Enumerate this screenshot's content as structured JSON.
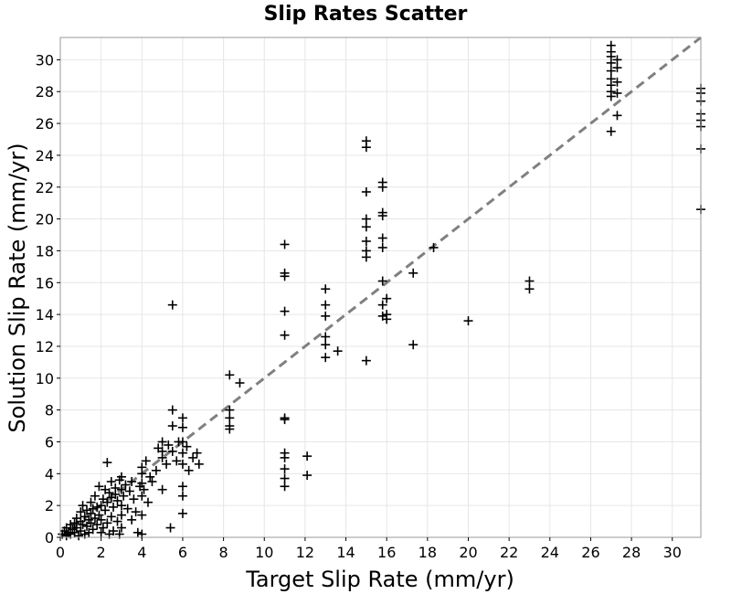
{
  "chart_data": {
    "type": "scatter",
    "title": "Slip Rates Scatter",
    "xlabel": "Target Slip Rate (mm/yr)",
    "ylabel": "Solution Slip Rate (mm/yr)",
    "xlim": [
      0,
      31.4
    ],
    "ylim": [
      0,
      31.4
    ],
    "xticks": [
      0,
      2,
      4,
      6,
      8,
      10,
      12,
      14,
      16,
      18,
      20,
      22,
      24,
      26,
      28,
      30
    ],
    "yticks": [
      0,
      2,
      4,
      6,
      8,
      10,
      12,
      14,
      16,
      18,
      20,
      22,
      24,
      26,
      28,
      30
    ],
    "grid": true,
    "marker": "plus",
    "marker_color": "#000000",
    "reference_line": {
      "style": "dashed",
      "color": "#808080",
      "from": [
        0,
        0
      ],
      "to": [
        31.4,
        31.4
      ]
    },
    "points": [
      [
        0.1,
        0.2
      ],
      [
        0.2,
        0.4
      ],
      [
        0.3,
        0.1
      ],
      [
        0.3,
        0.6
      ],
      [
        0.4,
        0.3
      ],
      [
        0.5,
        0.8
      ],
      [
        0.5,
        0.2
      ],
      [
        0.6,
        0.5
      ],
      [
        0.7,
        0.9
      ],
      [
        0.7,
        0.3
      ],
      [
        0.8,
        1.2
      ],
      [
        0.8,
        0.6
      ],
      [
        0.9,
        0.1
      ],
      [
        1.0,
        1.0
      ],
      [
        1.0,
        0.4
      ],
      [
        1.0,
        1.6
      ],
      [
        1.1,
        0.8
      ],
      [
        1.1,
        2.0
      ],
      [
        1.2,
        1.3
      ],
      [
        1.2,
        0.2
      ],
      [
        1.3,
        1.7
      ],
      [
        1.3,
        0.7
      ],
      [
        1.4,
        1.1
      ],
      [
        1.4,
        0.3
      ],
      [
        1.5,
        1.5
      ],
      [
        1.5,
        0.9
      ],
      [
        1.5,
        2.2
      ],
      [
        1.6,
        1.8
      ],
      [
        1.6,
        0.5
      ],
      [
        1.7,
        1.2
      ],
      [
        1.7,
        2.6
      ],
      [
        1.8,
        1.9
      ],
      [
        1.8,
        0.8
      ],
      [
        1.9,
        1.4
      ],
      [
        1.9,
        3.2
      ],
      [
        2.0,
        2.0
      ],
      [
        2.0,
        0.3
      ],
      [
        2.0,
        1.1
      ],
      [
        2.1,
        2.4
      ],
      [
        2.1,
        0.6
      ],
      [
        2.2,
        1.7
      ],
      [
        2.2,
        3.0
      ],
      [
        2.3,
        2.2
      ],
      [
        2.3,
        0.9
      ],
      [
        2.3,
        4.7
      ],
      [
        2.4,
        2.8
      ],
      [
        2.4,
        0.2
      ],
      [
        2.5,
        2.5
      ],
      [
        2.5,
        1.3
      ],
      [
        2.5,
        3.5
      ],
      [
        2.6,
        1.9
      ],
      [
        2.6,
        0.4
      ],
      [
        2.7,
        2.7
      ],
      [
        2.7,
        3.1
      ],
      [
        2.8,
        1.0
      ],
      [
        2.8,
        2.3
      ],
      [
        2.9,
        3.6
      ],
      [
        2.9,
        0.2
      ],
      [
        3.0,
        3.0
      ],
      [
        3.0,
        2.0
      ],
      [
        3.0,
        3.8
      ],
      [
        3.0,
        1.4
      ],
      [
        3.0,
        0.6
      ],
      [
        3.1,
        2.6
      ],
      [
        3.2,
        3.3
      ],
      [
        3.3,
        1.8
      ],
      [
        3.4,
        2.9
      ],
      [
        3.5,
        3.5
      ],
      [
        3.5,
        1.1
      ],
      [
        3.6,
        2.4
      ],
      [
        3.7,
        1.6
      ],
      [
        3.8,
        0.3
      ],
      [
        3.9,
        3.2
      ],
      [
        4.0,
        4.0
      ],
      [
        4.0,
        3.4
      ],
      [
        4.0,
        1.4
      ],
      [
        4.0,
        2.6
      ],
      [
        4.0,
        4.4
      ],
      [
        4.0,
        0.2
      ],
      [
        4.1,
        3.0
      ],
      [
        4.2,
        4.8
      ],
      [
        4.3,
        2.2
      ],
      [
        4.4,
        3.8
      ],
      [
        4.5,
        3.5
      ],
      [
        4.7,
        4.2
      ],
      [
        4.8,
        5.6
      ],
      [
        5.0,
        5.0
      ],
      [
        5.0,
        6.0
      ],
      [
        5.0,
        3.0
      ],
      [
        5.0,
        5.4
      ],
      [
        5.2,
        4.6
      ],
      [
        5.3,
        5.8
      ],
      [
        5.4,
        0.6
      ],
      [
        5.5,
        8.0
      ],
      [
        5.5,
        7.0
      ],
      [
        5.5,
        14.6
      ],
      [
        5.5,
        5.4
      ],
      [
        5.7,
        4.8
      ],
      [
        5.8,
        6.0
      ],
      [
        6.0,
        6.0
      ],
      [
        6.0,
        7.5
      ],
      [
        6.0,
        6.9
      ],
      [
        6.0,
        5.3
      ],
      [
        6.0,
        4.6
      ],
      [
        6.0,
        3.2
      ],
      [
        6.0,
        2.6
      ],
      [
        6.0,
        1.5
      ],
      [
        6.2,
        5.7
      ],
      [
        6.3,
        4.2
      ],
      [
        6.5,
        5.0
      ],
      [
        6.7,
        5.3
      ],
      [
        6.8,
        4.6
      ],
      [
        8.3,
        10.2
      ],
      [
        8.3,
        8.0
      ],
      [
        8.3,
        7.5
      ],
      [
        8.3,
        7.0
      ],
      [
        8.3,
        6.8
      ],
      [
        8.8,
        9.7
      ],
      [
        11.0,
        18.4
      ],
      [
        11.0,
        16.6
      ],
      [
        11.0,
        16.4
      ],
      [
        11.0,
        14.2
      ],
      [
        11.0,
        12.7
      ],
      [
        11.0,
        7.5
      ],
      [
        11.0,
        7.4
      ],
      [
        11.0,
        5.3
      ],
      [
        11.0,
        5.0
      ],
      [
        11.0,
        4.3
      ],
      [
        11.0,
        3.7
      ],
      [
        11.0,
        3.2
      ],
      [
        12.1,
        5.1
      ],
      [
        12.1,
        3.9
      ],
      [
        13.0,
        15.6
      ],
      [
        13.0,
        14.6
      ],
      [
        13.0,
        13.9
      ],
      [
        13.0,
        12.6
      ],
      [
        13.0,
        12.1
      ],
      [
        13.0,
        11.3
      ],
      [
        13.6,
        11.7
      ],
      [
        15.0,
        24.9
      ],
      [
        15.0,
        24.5
      ],
      [
        15.0,
        21.7
      ],
      [
        15.0,
        20.0
      ],
      [
        15.0,
        19.5
      ],
      [
        15.0,
        18.6
      ],
      [
        15.0,
        18.0
      ],
      [
        15.0,
        17.6
      ],
      [
        15.0,
        11.1
      ],
      [
        15.8,
        22.3
      ],
      [
        15.8,
        22.0
      ],
      [
        15.8,
        20.4
      ],
      [
        15.8,
        20.2
      ],
      [
        15.8,
        18.8
      ],
      [
        15.8,
        18.2
      ],
      [
        15.8,
        16.1
      ],
      [
        15.8,
        14.6
      ],
      [
        15.8,
        13.9
      ],
      [
        16.0,
        15.0
      ],
      [
        16.0,
        14.0
      ],
      [
        16.0,
        13.7
      ],
      [
        17.3,
        16.6
      ],
      [
        17.3,
        12.1
      ],
      [
        18.3,
        18.2
      ],
      [
        20.0,
        13.6
      ],
      [
        23.0,
        16.1
      ],
      [
        23.0,
        15.6
      ],
      [
        27.0,
        30.9
      ],
      [
        27.0,
        30.5
      ],
      [
        27.0,
        30.2
      ],
      [
        27.0,
        29.8
      ],
      [
        27.0,
        29.3
      ],
      [
        27.0,
        28.8
      ],
      [
        27.0,
        28.4
      ],
      [
        27.0,
        28.0
      ],
      [
        27.0,
        27.7
      ],
      [
        27.0,
        25.5
      ],
      [
        27.3,
        30.0
      ],
      [
        27.3,
        29.5
      ],
      [
        27.3,
        28.6
      ],
      [
        27.3,
        27.9
      ],
      [
        27.3,
        26.5
      ],
      [
        31.4,
        28.2
      ],
      [
        31.4,
        27.9
      ],
      [
        31.4,
        27.4
      ],
      [
        31.4,
        26.6
      ],
      [
        31.4,
        26.2
      ],
      [
        31.4,
        25.8
      ],
      [
        31.4,
        24.4
      ],
      [
        31.4,
        20.6
      ]
    ]
  }
}
